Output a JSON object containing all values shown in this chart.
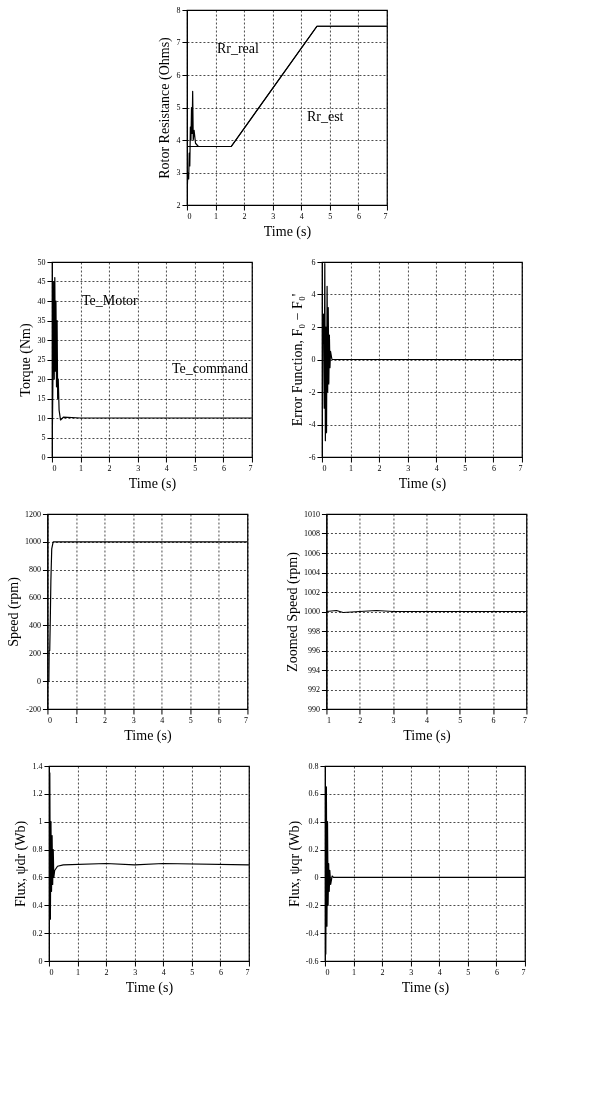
{
  "chart_data": [
    {
      "type": "line",
      "xlabel": "Time (s)",
      "ylabel": "Rotor Resistance (Ohms)",
      "xlim": [
        0,
        7
      ],
      "xticks": [
        0,
        1,
        2,
        3,
        4,
        5,
        6,
        7
      ],
      "ylim": [
        2,
        8
      ],
      "yticks": [
        2,
        3,
        4,
        5,
        6,
        7,
        8
      ],
      "grid": true,
      "line_style": "solid",
      "series": [
        {
          "color": "#000000",
          "x": [
            0,
            1.55,
            4.55,
            7
          ],
          "values": [
            3.8,
            3.8,
            7.5,
            7.5
          ]
        },
        {
          "color": "#000000",
          "x": [
            0,
            0.03,
            0.06,
            0.08,
            0.1,
            0.12,
            0.14,
            0.16,
            0.18,
            0.2,
            0.22,
            0.25,
            0.3,
            0.4,
            1.55,
            4.55,
            7
          ],
          "values": [
            2.2,
            3.0,
            2.8,
            3.6,
            3.2,
            4.4,
            4.0,
            5.0,
            4.2,
            5.5,
            4.0,
            4.3,
            3.9,
            3.8,
            3.8,
            7.5,
            7.5
          ]
        }
      ],
      "annotations": [
        "Rr_real",
        "Rr_est"
      ]
    },
    {
      "type": "line",
      "xlabel": "Time (s)",
      "ylabel": "Torque (Nm)",
      "xlim": [
        0,
        7
      ],
      "xticks": [
        0,
        1,
        2,
        3,
        4,
        5,
        6,
        7
      ],
      "ylim": [
        0,
        50
      ],
      "yticks": [
        0,
        5,
        10,
        15,
        20,
        25,
        30,
        35,
        40,
        45,
        50
      ],
      "grid": true,
      "line_style": "solid",
      "series": [
        {
          "color": "#000000",
          "x": [
            0,
            0.02,
            0.04,
            0.06,
            0.08,
            0.1,
            0.12,
            0.14,
            0.16,
            0.18,
            0.2,
            0.22,
            0.25,
            0.3,
            0.4,
            1,
            7
          ],
          "values": [
            0,
            10,
            25,
            45,
            20,
            46,
            22,
            40,
            18,
            35,
            15,
            20,
            12,
            9.5,
            10.2,
            10,
            10
          ]
        }
      ],
      "annotations": [
        "Te_Motor",
        "Te_command"
      ]
    },
    {
      "type": "line",
      "xlabel": "Time (s)",
      "ylabel": "Error Function, F₀ − F₀'",
      "xlim": [
        0,
        7
      ],
      "xticks": [
        0,
        1,
        2,
        3,
        4,
        5,
        6,
        7
      ],
      "ylim": [
        -6,
        6
      ],
      "yticks": [
        -6,
        -4,
        -2,
        0,
        2,
        4,
        6
      ],
      "grid": true,
      "line_style": "solid",
      "series": [
        {
          "color": "#000000",
          "x": [
            0,
            0.05,
            0.08,
            0.1,
            0.12,
            0.14,
            0.16,
            0.18,
            0.2,
            0.22,
            0.24,
            0.26,
            0.28,
            0.3,
            0.35,
            7
          ],
          "values": [
            0,
            2.8,
            -3,
            5.9,
            -5,
            2,
            -4.5,
            4.5,
            -2,
            3.2,
            -1.5,
            1.5,
            -0.5,
            0.5,
            0,
            0
          ]
        }
      ]
    },
    {
      "type": "line",
      "xlabel": "Time (s)",
      "ylabel": "Speed (rpm)",
      "xlim": [
        0,
        7
      ],
      "xticks": [
        0,
        1,
        2,
        3,
        4,
        5,
        6,
        7
      ],
      "ylim": [
        -200,
        1200
      ],
      "yticks": [
        -200,
        0,
        200,
        400,
        600,
        800,
        1000,
        1200
      ],
      "grid": true,
      "line_style": "solid",
      "series": [
        {
          "color": "#000000",
          "x": [
            0,
            0.05,
            0.06,
            0.08,
            0.1,
            0.12,
            0.15,
            0.18,
            0.2,
            7
          ],
          "values": [
            0,
            0,
            220,
            220,
            450,
            720,
            950,
            980,
            1000,
            1000
          ]
        }
      ]
    },
    {
      "type": "line",
      "xlabel": "Time (s)",
      "ylabel": "Zoomed  Speed (rpm)",
      "xlim": [
        1,
        7
      ],
      "xticks": [
        1,
        2,
        3,
        4,
        5,
        6,
        7
      ],
      "ylim": [
        990,
        1010
      ],
      "yticks": [
        990,
        992,
        994,
        996,
        998,
        1000,
        1002,
        1004,
        1006,
        1008,
        1010
      ],
      "grid": true,
      "line_style": "solid",
      "series": [
        {
          "color": "#000000",
          "x": [
            1,
            1.3,
            1.5,
            2,
            2.5,
            3,
            3.5,
            4,
            5,
            6,
            7
          ],
          "values": [
            1000,
            1000.1,
            999.9,
            1000,
            1000.1,
            1000,
            1000,
            1000,
            1000,
            1000,
            1000
          ]
        }
      ]
    },
    {
      "type": "line",
      "xlabel": "Time (s)",
      "ylabel": "Flux,  ψdr (Wb)",
      "xlim": [
        0,
        7
      ],
      "xticks": [
        0,
        1,
        2,
        3,
        4,
        5,
        6,
        7
      ],
      "ylim": [
        0,
        1.4
      ],
      "yticks": [
        0,
        0.2,
        0.4,
        0.6,
        0.8,
        1,
        1.2,
        1.4
      ],
      "grid": true,
      "line_style": "solid",
      "series": [
        {
          "color": "#000000",
          "x": [
            0,
            0.03,
            0.05,
            0.07,
            0.09,
            0.11,
            0.13,
            0.15,
            0.17,
            0.2,
            0.3,
            0.5,
            2,
            3,
            4,
            7
          ],
          "values": [
            0.2,
            1.35,
            0.3,
            1.0,
            0.5,
            0.9,
            0.55,
            0.8,
            0.6,
            0.65,
            0.68,
            0.69,
            0.7,
            0.69,
            0.7,
            0.69
          ]
        }
      ]
    },
    {
      "type": "line",
      "xlabel": "Time (s)",
      "ylabel": "Flux, ψqr (Wb)",
      "xlim": [
        0,
        7
      ],
      "xticks": [
        0,
        1,
        2,
        3,
        4,
        5,
        6,
        7
      ],
      "ylim": [
        -0.6,
        0.8
      ],
      "yticks": [
        -0.6,
        -0.4,
        -0.2,
        0,
        0.2,
        0.4,
        0.6,
        0.8
      ],
      "grid": true,
      "line_style": "solid",
      "series": [
        {
          "color": "#000000",
          "x": [
            0,
            0.03,
            0.05,
            0.07,
            0.09,
            0.11,
            0.13,
            0.15,
            0.17,
            0.2,
            0.25,
            0.3,
            7
          ],
          "values": [
            0.75,
            -0.55,
            0.65,
            -0.35,
            0.4,
            -0.2,
            0.1,
            -0.1,
            0.05,
            -0.05,
            0.01,
            0,
            0
          ]
        }
      ]
    }
  ]
}
